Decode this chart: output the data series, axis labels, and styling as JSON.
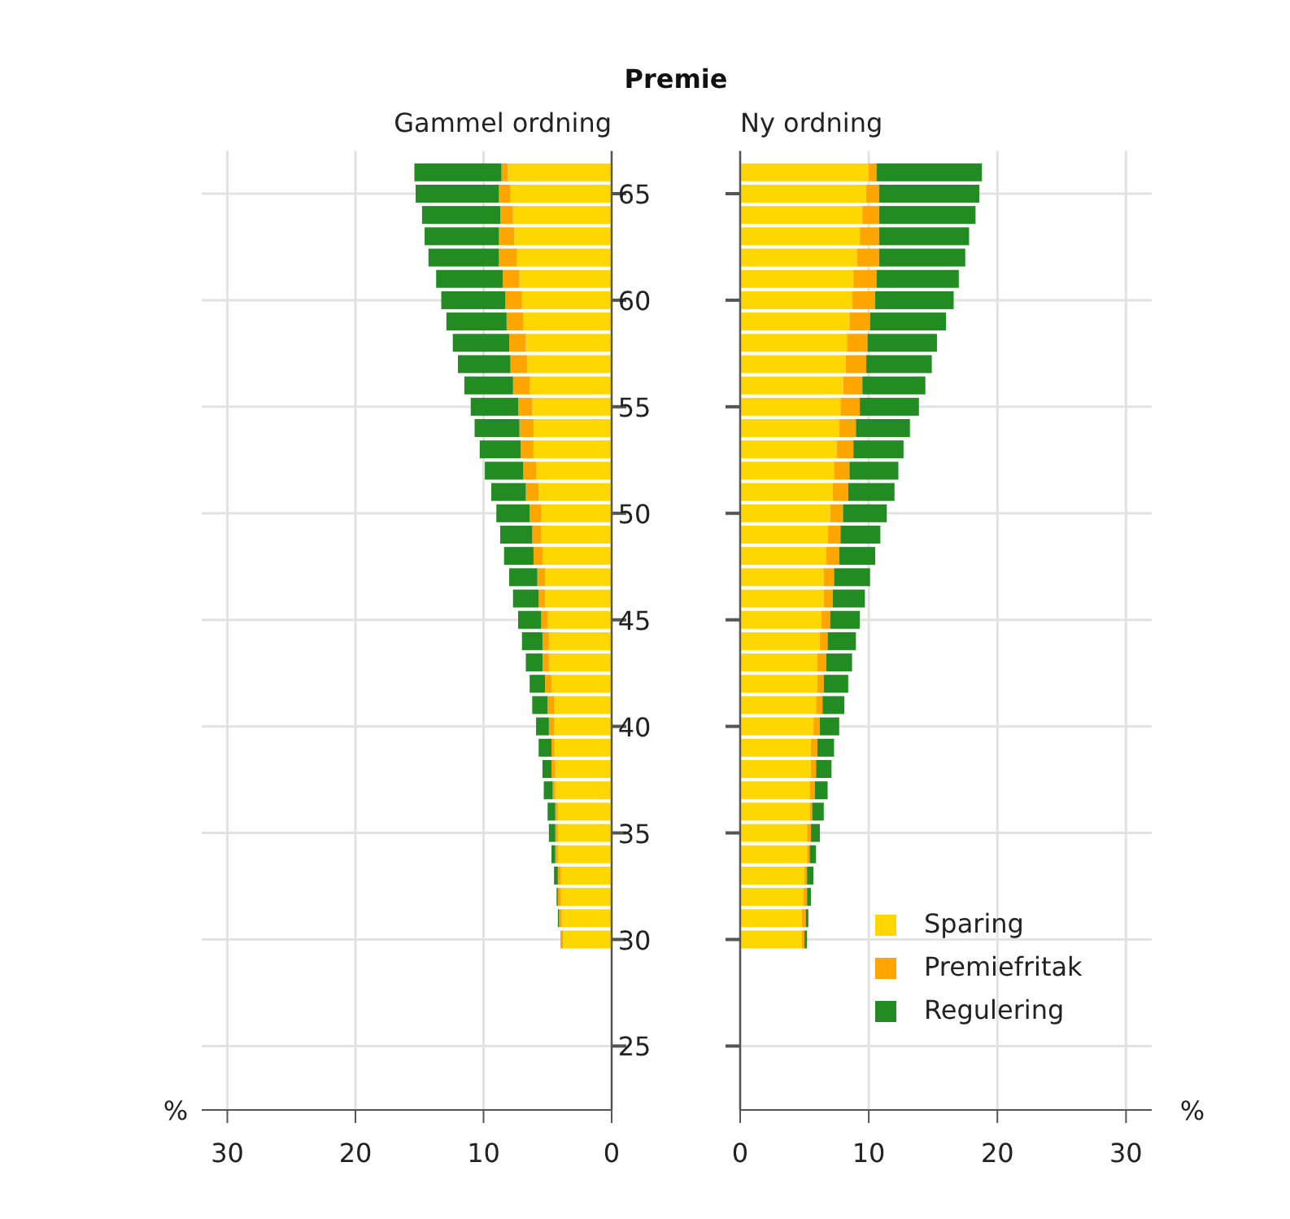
{
  "chart_data": [
    {
      "type": "bar",
      "orientation": "horizontal",
      "stacked": true,
      "title": "Premie",
      "subtitle": "Gammel ordning",
      "xlabel": "%",
      "x": [
        30,
        31,
        32,
        33,
        34,
        35,
        36,
        37,
        38,
        39,
        40,
        41,
        42,
        43,
        44,
        45,
        46,
        47,
        48,
        49,
        50,
        51,
        52,
        53,
        54,
        55,
        56,
        57,
        58,
        59,
        60,
        61,
        62,
        63,
        64,
        65,
        66
      ],
      "series": [
        {
          "color": "#ffd700",
          "values": [
            3.8,
            3.9,
            4.0,
            4.0,
            4.2,
            4.2,
            4.2,
            4.4,
            4.4,
            4.5,
            4.5,
            4.5,
            4.7,
            4.9,
            4.9,
            5.0,
            5.2,
            5.2,
            5.4,
            5.5,
            5.5,
            5.7,
            5.9,
            6.1,
            6.1,
            6.2,
            6.4,
            6.6,
            6.7,
            6.9,
            7.0,
            7.2,
            7.4,
            7.6,
            7.7,
            7.9,
            8.1
          ]
        },
        {
          "color": "#ffa500",
          "values": [
            0.2,
            0.2,
            0.2,
            0.2,
            0.2,
            0.2,
            0.2,
            0.2,
            0.3,
            0.2,
            0.4,
            0.5,
            0.5,
            0.5,
            0.5,
            0.5,
            0.5,
            0.6,
            0.7,
            0.7,
            0.9,
            1.0,
            1.0,
            1.0,
            1.1,
            1.1,
            1.3,
            1.3,
            1.3,
            1.3,
            1.3,
            1.3,
            1.4,
            1.2,
            1.0,
            0.9,
            0.5
          ]
        },
        {
          "color": "#228b22",
          "values": [
            0,
            0.1,
            0.1,
            0.3,
            0.3,
            0.5,
            0.6,
            0.7,
            0.7,
            1.0,
            1.0,
            1.2,
            1.2,
            1.3,
            1.6,
            1.8,
            2.0,
            2.2,
            2.3,
            2.5,
            2.6,
            2.7,
            3.0,
            3.2,
            3.5,
            3.7,
            3.8,
            4.1,
            4.4,
            4.7,
            5.0,
            5.2,
            5.5,
            5.8,
            6.1,
            6.5,
            6.8
          ]
        }
      ],
      "xlim": [
        32,
        0
      ],
      "xticks": [
        30,
        20,
        10,
        0
      ],
      "ylim": [
        22,
        67
      ],
      "yticks": [
        25,
        30,
        35,
        40,
        45,
        50,
        55,
        60,
        65
      ],
      "grid": true
    },
    {
      "type": "bar",
      "orientation": "horizontal",
      "stacked": true,
      "subtitle": "Ny ordning",
      "xlabel": "%",
      "x": [
        30,
        31,
        32,
        33,
        34,
        35,
        36,
        37,
        38,
        39,
        40,
        41,
        42,
        43,
        44,
        45,
        46,
        47,
        48,
        49,
        50,
        51,
        52,
        53,
        54,
        55,
        56,
        57,
        58,
        59,
        60,
        61,
        62,
        63,
        64,
        65,
        66
      ],
      "series": [
        {
          "name": "Sparing",
          "color": "#ffd700",
          "values": [
            4.8,
            4.8,
            4.9,
            5.0,
            5.2,
            5.2,
            5.4,
            5.4,
            5.5,
            5.5,
            5.7,
            5.9,
            6.0,
            6.0,
            6.2,
            6.3,
            6.5,
            6.5,
            6.7,
            6.8,
            7.0,
            7.2,
            7.3,
            7.5,
            7.7,
            7.8,
            8.0,
            8.2,
            8.3,
            8.5,
            8.7,
            8.8,
            9.1,
            9.3,
            9.5,
            9.8,
            10.0
          ]
        },
        {
          "name": "Premiefritak",
          "color": "#ffa500",
          "values": [
            0.2,
            0.3,
            0.3,
            0.2,
            0.2,
            0.3,
            0.2,
            0.4,
            0.4,
            0.5,
            0.5,
            0.5,
            0.5,
            0.7,
            0.6,
            0.7,
            0.7,
            0.8,
            1.0,
            1.0,
            1.0,
            1.2,
            1.2,
            1.3,
            1.3,
            1.5,
            1.5,
            1.6,
            1.6,
            1.6,
            1.8,
            1.8,
            1.7,
            1.5,
            1.3,
            1.0,
            0.6
          ]
        },
        {
          "name": "Regulering",
          "color": "#228b22",
          "values": [
            0.2,
            0.2,
            0.3,
            0.5,
            0.5,
            0.7,
            0.9,
            1.0,
            1.2,
            1.3,
            1.5,
            1.7,
            1.9,
            2.0,
            2.2,
            2.3,
            2.5,
            2.8,
            2.8,
            3.1,
            3.4,
            3.6,
            3.8,
            3.9,
            4.2,
            4.6,
            4.9,
            5.1,
            5.4,
            5.9,
            6.1,
            6.4,
            6.7,
            7.0,
            7.5,
            7.8,
            8.2
          ]
        }
      ],
      "xlim": [
        0,
        32
      ],
      "xticks": [
        0,
        10,
        20,
        30
      ],
      "ylim": [
        22,
        67
      ],
      "yticks": [
        25,
        30,
        35,
        40,
        45,
        50,
        55,
        60,
        65
      ],
      "grid": true,
      "legend": "bottom right",
      "tick_labels": "x"
    }
  ]
}
